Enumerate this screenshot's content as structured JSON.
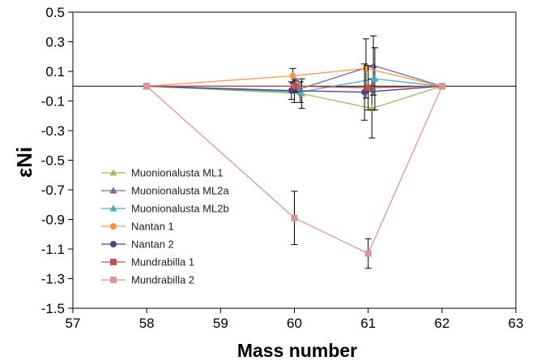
{
  "chart_data": {
    "type": "line",
    "xlabel": "Mass number",
    "ylabel": "εNi",
    "xlim": [
      57,
      63
    ],
    "ylim": [
      -1.5,
      0.5
    ],
    "xticks": [
      57,
      58,
      59,
      60,
      61,
      62,
      63
    ],
    "yticks": [
      0.5,
      0.3,
      0.1,
      -0.1,
      -0.3,
      -0.5,
      -0.7,
      -0.9,
      -1.1,
      -1.3,
      -1.5
    ],
    "reference_line_y": 0,
    "grid": false,
    "legend_position": "left",
    "series": [
      {
        "name": "Muonionalusta ML1",
        "color": "#9bbb59",
        "marker": "triangle",
        "x": [
          58,
          60.1,
          61.05,
          62
        ],
        "y": [
          0,
          -0.05,
          -0.15,
          0
        ],
        "err": [
          0,
          0.1,
          0.2,
          0
        ]
      },
      {
        "name": "Muonionalusta ML2a",
        "color": "#8064a2",
        "marker": "triangle",
        "x": [
          58,
          60,
          61.07,
          62
        ],
        "y": [
          0,
          -0.03,
          0.14,
          0
        ],
        "err": [
          0,
          0.08,
          0.2,
          0
        ]
      },
      {
        "name": "Muonionalusta ML2b",
        "color": "#4bacc6",
        "marker": "triangle",
        "x": [
          58,
          60.08,
          61.09,
          62
        ],
        "y": [
          0,
          -0.04,
          0.05,
          0
        ],
        "err": [
          0,
          0.07,
          0.21,
          0
        ]
      },
      {
        "name": "Nantan 1",
        "color": "#f79646",
        "marker": "circle",
        "x": [
          58,
          59.98,
          60.97,
          62
        ],
        "y": [
          0,
          0.07,
          0.12,
          0
        ],
        "err": [
          0,
          0.05,
          0.2,
          0
        ]
      },
      {
        "name": "Nantan 2",
        "color": "#4f3f8a",
        "marker": "circle",
        "x": [
          58,
          59.96,
          60.95,
          62
        ],
        "y": [
          0,
          -0.03,
          -0.04,
          0
        ],
        "err": [
          0,
          0.06,
          0.19,
          0
        ]
      },
      {
        "name": "Mundrabilla 1",
        "color": "#c0504d",
        "marker": "square",
        "x": [
          58,
          60.02,
          61,
          62
        ],
        "y": [
          0,
          0,
          -0.01,
          0
        ],
        "err": [
          0,
          0.04,
          0.15,
          0
        ]
      },
      {
        "name": "Mundrabilla 2",
        "color": "#d99694",
        "marker": "square",
        "x": [
          58,
          60,
          61,
          62
        ],
        "y": [
          0,
          -0.89,
          -1.13,
          0
        ],
        "err": [
          0,
          0.18,
          0.1,
          0
        ]
      }
    ]
  }
}
